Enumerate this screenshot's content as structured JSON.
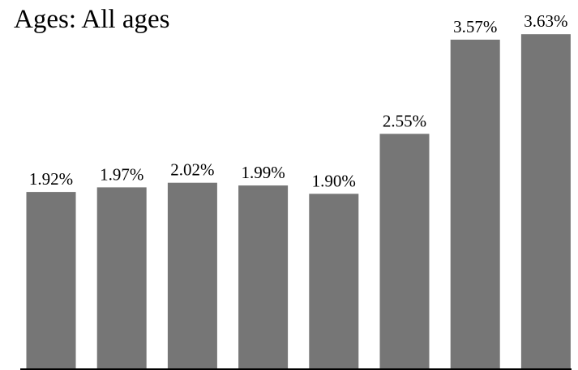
{
  "chart_data": {
    "type": "bar",
    "title": "Ages:  All ages",
    "categories": [],
    "values": [
      1.92,
      1.97,
      2.02,
      1.99,
      1.9,
      2.55,
      3.57,
      3.63
    ],
    "labels": [
      "1.92%",
      "1.97%",
      "2.02%",
      "1.99%",
      "1.90%",
      "2.55%",
      "3.57%",
      "3.63%"
    ],
    "ylim": [
      0,
      4.0
    ],
    "grid": false,
    "legend": "none",
    "bar_color": "#767676",
    "axis_color": "#000000"
  }
}
